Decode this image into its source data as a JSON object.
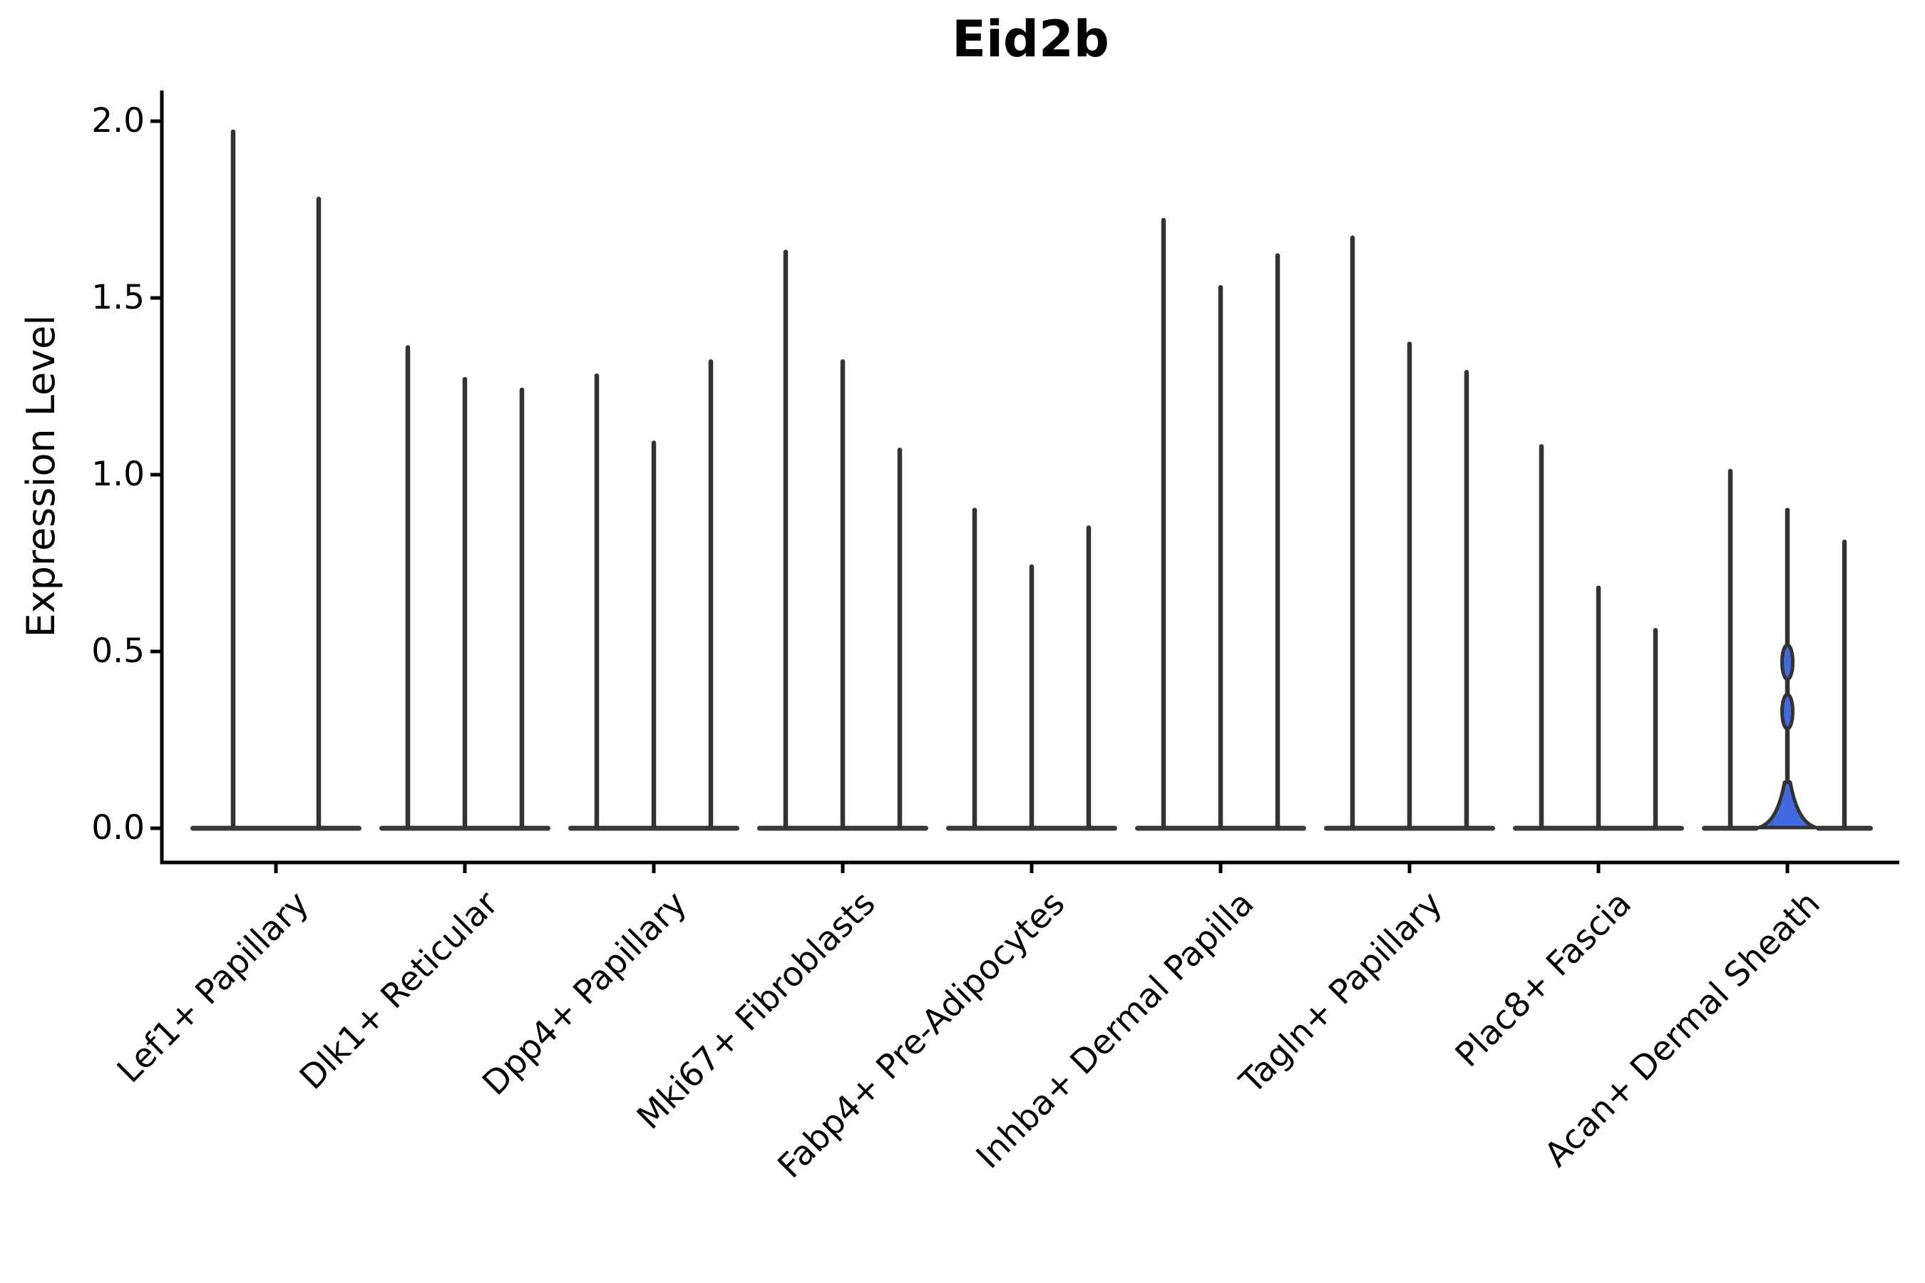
{
  "chart_data": {
    "type": "violin",
    "title": "Eid2b",
    "xlabel": "",
    "ylabel": "Expression Level",
    "ylim": [
      0.0,
      2.05
    ],
    "yticks": [
      0.0,
      0.5,
      1.0,
      1.5,
      2.0
    ],
    "ytick_labels": [
      "0.0",
      "0.5",
      "1.0",
      "1.5",
      "2.0"
    ],
    "grid": false,
    "legend": null,
    "categories": [
      "Lef1+ Papillary",
      "Dlk1+ Reticular",
      "Dpp4+ Papillary",
      "Mki67+ Fibroblasts",
      "Fabp4+ Pre-Adipocytes",
      "Inhba+ Dermal Papilla",
      "Tagln+ Papillary",
      "Plac8+ Fascia",
      "Acan+ Dermal Sheath"
    ],
    "groups": [
      {
        "category": "Lef1+ Papillary",
        "violins": [
          {
            "max": 1.97
          },
          {
            "max": 1.78
          }
        ]
      },
      {
        "category": "Dlk1+ Reticular",
        "violins": [
          {
            "max": 1.36
          },
          {
            "max": 1.27
          },
          {
            "max": 1.24
          }
        ]
      },
      {
        "category": "Dpp4+ Papillary",
        "violins": [
          {
            "max": 1.28
          },
          {
            "max": 1.09
          },
          {
            "max": 1.32
          }
        ]
      },
      {
        "category": "Mki67+ Fibroblasts",
        "violins": [
          {
            "max": 1.63
          },
          {
            "max": 1.32
          },
          {
            "max": 1.07
          }
        ]
      },
      {
        "category": "Fabp4+ Pre-Adipocytes",
        "violins": [
          {
            "max": 0.9
          },
          {
            "max": 0.74
          },
          {
            "max": 0.85
          }
        ]
      },
      {
        "category": "Inhba+ Dermal Papilla",
        "violins": [
          {
            "max": 1.72
          },
          {
            "max": 1.53
          },
          {
            "max": 1.62
          }
        ]
      },
      {
        "category": "Tagln+ Papillary",
        "violins": [
          {
            "max": 1.67
          },
          {
            "max": 1.37
          },
          {
            "max": 1.29
          }
        ]
      },
      {
        "category": "Plac8+ Fascia",
        "violins": [
          {
            "max": 1.08
          },
          {
            "max": 0.68
          },
          {
            "max": 0.56
          }
        ]
      },
      {
        "category": "Acan+ Dermal Sheath",
        "violins": [
          {
            "max": 1.01
          },
          {
            "max": 0.9,
            "highlighted": true,
            "bulges": [
              0.47,
              0.33
            ],
            "base_blob_peak": 0.13
          },
          {
            "max": 0.81
          }
        ]
      }
    ],
    "colors": {
      "violin_edge": "#333333",
      "violin_base": "#3a3a3a",
      "highlight_fill": "#4169E1",
      "axis": "#000000",
      "text": "#000000"
    }
  }
}
